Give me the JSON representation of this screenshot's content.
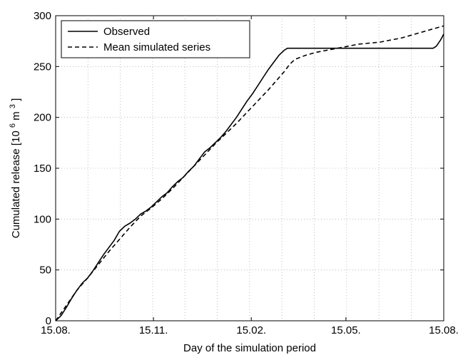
{
  "chart_data": {
    "type": "line",
    "title": "",
    "xlabel": "Day of the simulation period",
    "ylabel_main": "Cumulated release [10",
    "ylabel_exp1": "6",
    "ylabel_mid": " m",
    "ylabel_exp2": "3",
    "ylabel_end": "]",
    "xlim": [
      0,
      365
    ],
    "ylim": [
      0,
      300
    ],
    "x_ticks": [
      {
        "value": 0,
        "label": "15.08."
      },
      {
        "value": 92,
        "label": "15.11."
      },
      {
        "value": 184,
        "label": "15.02."
      },
      {
        "value": 273,
        "label": "15.05."
      },
      {
        "value": 365,
        "label": "15.08."
      }
    ],
    "y_ticks": [
      0,
      50,
      100,
      150,
      200,
      250,
      300
    ],
    "grid": true,
    "legend_position": "top-left",
    "series": [
      {
        "name": "Observed",
        "style": "solid",
        "points": [
          [
            0,
            0
          ],
          [
            5,
            5
          ],
          [
            10,
            13
          ],
          [
            15,
            22
          ],
          [
            20,
            30
          ],
          [
            25,
            37
          ],
          [
            30,
            42
          ],
          [
            35,
            49
          ],
          [
            40,
            57
          ],
          [
            45,
            65
          ],
          [
            50,
            72
          ],
          [
            55,
            79
          ],
          [
            60,
            88
          ],
          [
            65,
            93
          ],
          [
            70,
            96
          ],
          [
            75,
            100
          ],
          [
            80,
            105
          ],
          [
            85,
            108
          ],
          [
            90,
            112
          ],
          [
            95,
            117
          ],
          [
            100,
            122
          ],
          [
            105,
            126
          ],
          [
            110,
            132
          ],
          [
            115,
            137
          ],
          [
            120,
            141
          ],
          [
            125,
            147
          ],
          [
            130,
            152
          ],
          [
            135,
            159
          ],
          [
            140,
            166
          ],
          [
            145,
            170
          ],
          [
            150,
            175
          ],
          [
            155,
            180
          ],
          [
            160,
            186
          ],
          [
            165,
            193
          ],
          [
            170,
            200
          ],
          [
            175,
            208
          ],
          [
            180,
            216
          ],
          [
            185,
            223
          ],
          [
            190,
            231
          ],
          [
            195,
            239
          ],
          [
            200,
            247
          ],
          [
            205,
            254
          ],
          [
            210,
            261
          ],
          [
            215,
            266
          ],
          [
            218,
            268
          ],
          [
            225,
            268
          ],
          [
            240,
            268
          ],
          [
            260,
            268
          ],
          [
            280,
            268
          ],
          [
            300,
            268
          ],
          [
            320,
            268
          ],
          [
            340,
            268
          ],
          [
            355,
            268
          ],
          [
            358,
            270
          ],
          [
            362,
            276
          ],
          [
            365,
            282
          ]
        ]
      },
      {
        "name": "Mean simulated series",
        "style": "dashed",
        "points": [
          [
            0,
            0
          ],
          [
            10,
            15
          ],
          [
            20,
            30
          ],
          [
            30,
            42
          ],
          [
            40,
            55
          ],
          [
            50,
            68
          ],
          [
            60,
            80
          ],
          [
            70,
            92
          ],
          [
            80,
            103
          ],
          [
            90,
            111
          ],
          [
            100,
            120
          ],
          [
            110,
            130
          ],
          [
            120,
            141
          ],
          [
            130,
            152
          ],
          [
            140,
            163
          ],
          [
            150,
            174
          ],
          [
            160,
            184
          ],
          [
            170,
            194
          ],
          [
            180,
            205
          ],
          [
            190,
            216
          ],
          [
            200,
            227
          ],
          [
            210,
            239
          ],
          [
            215,
            245
          ],
          [
            220,
            252
          ],
          [
            225,
            257
          ],
          [
            235,
            261
          ],
          [
            245,
            264
          ],
          [
            255,
            266
          ],
          [
            265,
            268
          ],
          [
            275,
            270
          ],
          [
            285,
            272
          ],
          [
            295,
            273
          ],
          [
            305,
            274
          ],
          [
            315,
            276
          ],
          [
            325,
            278
          ],
          [
            335,
            281
          ],
          [
            345,
            284
          ],
          [
            355,
            287
          ],
          [
            365,
            290
          ]
        ]
      }
    ]
  }
}
